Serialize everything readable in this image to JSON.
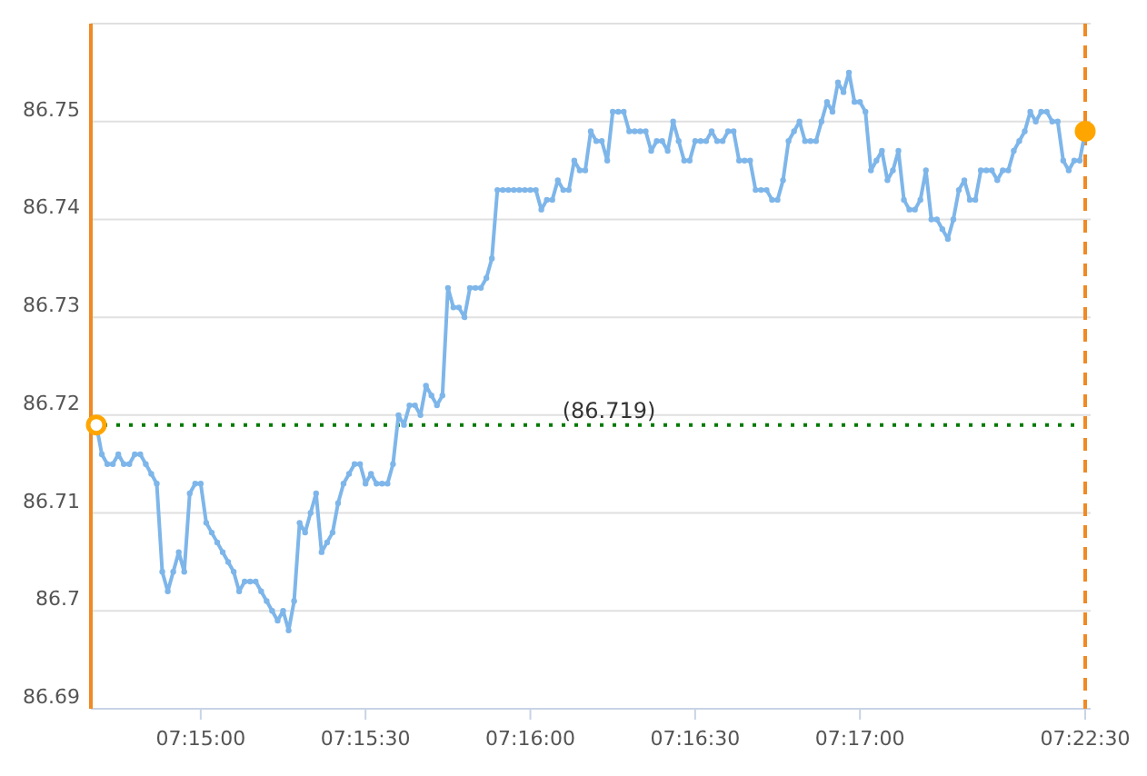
{
  "chart_data": {
    "type": "line",
    "ylim": [
      86.69,
      86.76
    ],
    "categories": [
      null,
      null,
      null,
      null,
      null,
      null,
      null,
      null,
      null,
      null,
      null,
      null,
      null,
      null,
      null,
      null,
      null,
      null,
      null,
      "07:15:00",
      null,
      null,
      null,
      null,
      null,
      null,
      null,
      null,
      null,
      null,
      null,
      null,
      null,
      null,
      null,
      null,
      null,
      null,
      null,
      null,
      null,
      null,
      null,
      null,
      null,
      null,
      null,
      null,
      null,
      "07:15:30",
      null,
      null,
      null,
      null,
      null,
      null,
      null,
      null,
      null,
      null,
      null,
      null,
      null,
      null,
      null,
      null,
      null,
      null,
      null,
      null,
      null,
      null,
      null,
      null,
      null,
      null,
      null,
      null,
      null,
      "07:16:00",
      null,
      null,
      null,
      null,
      null,
      null,
      null,
      null,
      null,
      null,
      null,
      null,
      null,
      null,
      null,
      null,
      null,
      null,
      null,
      null,
      null,
      null,
      null,
      null,
      null,
      null,
      null,
      null,
      null,
      "07:16:30",
      null,
      null,
      null,
      null,
      null,
      null,
      null,
      null,
      null,
      null,
      null,
      null,
      null,
      null,
      null,
      null,
      null,
      null,
      null,
      null,
      null,
      null,
      null,
      null,
      null,
      null,
      null,
      null,
      null,
      "07:17:00",
      null,
      null,
      null,
      null,
      null,
      null,
      null,
      null,
      null,
      null,
      null,
      null,
      null,
      null,
      null,
      null,
      null,
      null,
      null,
      null,
      null,
      null,
      null,
      null,
      null,
      null,
      null,
      null,
      null,
      null,
      null,
      null,
      null,
      null,
      null,
      null,
      null,
      null,
      null,
      null,
      "07:22:30"
    ],
    "yticks": [
      86.69,
      {
        "value": 86.7,
        "label": "86.7"
      },
      86.71,
      86.72,
      86.73,
      86.74,
      86.75,
      {
        "value": 86.76,
        "label": null
      }
    ],
    "grid": "y",
    "marker": "circle",
    "line_style": "solid",
    "series": [
      {
        "color": "#7eb6ea",
        "values": [
          86.719,
          86.716,
          86.715,
          86.715,
          86.716,
          86.715,
          86.715,
          86.716,
          86.716,
          86.715,
          86.714,
          86.713,
          86.704,
          86.702,
          86.704,
          86.706,
          86.704,
          86.712,
          86.713,
          86.713,
          86.709,
          86.708,
          86.707,
          86.706,
          86.705,
          86.704,
          86.702,
          86.703,
          86.703,
          86.703,
          86.702,
          86.701,
          86.7,
          86.699,
          86.7,
          86.698,
          86.701,
          86.709,
          86.708,
          86.71,
          86.712,
          86.706,
          86.707,
          86.708,
          86.711,
          86.713,
          86.714,
          86.715,
          86.715,
          86.713,
          86.714,
          86.713,
          86.713,
          86.713,
          86.715,
          86.72,
          86.719,
          86.721,
          86.721,
          86.72,
          86.723,
          86.722,
          86.721,
          86.722,
          86.733,
          86.731,
          86.731,
          86.73,
          86.733,
          86.733,
          86.733,
          86.734,
          86.736,
          86.743,
          86.743,
          86.743,
          86.743,
          86.743,
          86.743,
          86.743,
          86.743,
          86.741,
          86.742,
          86.742,
          86.744,
          86.743,
          86.743,
          86.746,
          86.745,
          86.745,
          86.749,
          86.748,
          86.748,
          86.746,
          86.751,
          86.751,
          86.751,
          86.749,
          86.749,
          86.749,
          86.749,
          86.747,
          86.748,
          86.748,
          86.747,
          86.75,
          86.748,
          86.746,
          86.746,
          86.748,
          86.748,
          86.748,
          86.749,
          86.748,
          86.748,
          86.749,
          86.749,
          86.746,
          86.746,
          86.746,
          86.743,
          86.743,
          86.743,
          86.742,
          86.742,
          86.744,
          86.748,
          86.749,
          86.75,
          86.748,
          86.748,
          86.748,
          86.75,
          86.752,
          86.751,
          86.754,
          86.753,
          86.755,
          86.752,
          86.752,
          86.751,
          86.745,
          86.746,
          86.747,
          86.744,
          86.745,
          86.747,
          86.742,
          86.741,
          86.741,
          86.742,
          86.745,
          86.74,
          86.74,
          86.739,
          86.738,
          86.74,
          86.743,
          86.744,
          86.742,
          86.742,
          86.745,
          86.745,
          86.745,
          86.744,
          86.745,
          86.745,
          86.747,
          86.748,
          86.749,
          86.751,
          86.75,
          86.751,
          86.751,
          86.75,
          86.75,
          86.746,
          86.745,
          86.746,
          86.746,
          86.749
        ]
      },
      {
        "type": "scatter",
        "color": "#ffa500",
        "values": [
          86.719,
          null,
          null,
          null,
          null,
          null,
          null,
          null,
          null,
          null,
          null,
          null,
          null,
          null,
          null,
          null,
          null,
          null,
          null,
          null,
          null,
          null,
          null,
          null,
          null,
          null,
          null,
          null,
          null,
          null,
          null,
          null,
          null,
          null,
          null,
          null,
          null,
          null,
          null,
          null,
          null,
          null,
          null,
          null,
          null,
          null,
          null,
          null,
          null,
          null,
          null,
          null,
          null,
          null,
          null,
          null,
          null,
          null,
          null,
          null,
          null,
          null,
          null,
          null,
          null,
          null,
          null,
          null,
          null,
          null,
          null,
          null,
          null,
          null,
          null,
          null,
          null,
          null,
          null,
          null,
          null,
          null,
          null,
          null,
          null,
          null,
          null,
          null,
          null,
          null,
          null,
          null,
          null,
          null,
          null,
          null,
          null,
          null,
          null,
          null,
          null,
          null,
          null,
          null,
          null,
          null,
          null,
          null,
          null,
          null,
          null,
          null,
          null,
          null,
          null,
          null,
          null,
          null,
          null,
          null,
          null,
          null,
          null,
          null,
          null,
          null,
          null,
          null,
          null,
          null,
          null,
          null,
          null,
          null,
          null,
          null,
          null,
          null,
          null,
          null,
          null,
          null,
          null,
          null,
          null,
          null,
          null,
          null,
          null,
          null,
          null,
          null,
          null,
          null,
          null,
          null,
          null,
          null,
          null,
          null,
          null,
          null,
          null,
          null,
          null,
          null,
          null,
          null,
          null,
          null,
          null,
          null,
          null,
          null,
          null,
          null,
          null,
          null,
          null,
          null,
          86.749
        ]
      }
    ],
    "ref_lines": [
      {
        "axis": "y",
        "value": 86.719,
        "label": "(86.719)",
        "color": "#007a00",
        "line_style": "dotted"
      },
      {
        "axis": "x",
        "value": "07:22:30",
        "color": "#f08a24",
        "line_style": "dashed"
      }
    ]
  }
}
